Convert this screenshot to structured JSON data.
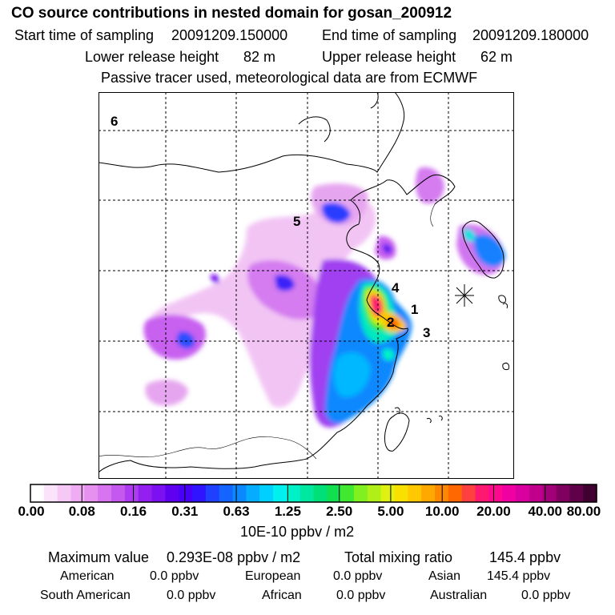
{
  "header": {
    "title": "CO  source contributions in nested domain for gosan_200912",
    "start_label": "Start time of sampling",
    "start_value": "20091209.150000",
    "end_label": "End time of sampling",
    "end_value": "20091209.180000",
    "lower_label": "Lower release height",
    "lower_value": "82 m",
    "upper_label": "Upper release height",
    "upper_value": "62 m",
    "note": "Passive tracer used, meteorological data are from ECMWF"
  },
  "map": {
    "region_labels": [
      "1",
      "2",
      "3",
      "4",
      "5",
      "6"
    ],
    "receptor_marker": "asterisk"
  },
  "colorbar": {
    "tick_labels": [
      "0.00",
      "0.08",
      "0.16",
      "0.31",
      "0.63",
      "1.25",
      "2.50",
      "5.00",
      "10.00",
      "20.00",
      "40.00",
      "80.00"
    ],
    "colors": [
      "#ffffff",
      "#fbe4fb",
      "#f5c8f5",
      "#efacf2",
      "#e690f0",
      "#d874ef",
      "#c558ef",
      "#ad3cf0",
      "#9420f0",
      "#7c10f0",
      "#6000f0",
      "#4800f8",
      "#3014ff",
      "#2040ff",
      "#1464ff",
      "#0c88ff",
      "#06acff",
      "#00d0ff",
      "#00f0f0",
      "#00f0c8",
      "#00e8a0",
      "#00e078",
      "#10e050",
      "#40e830",
      "#80f020",
      "#b0f018",
      "#e0f010",
      "#f8e000",
      "#ffc800",
      "#ffa800",
      "#ff8800",
      "#ff6800",
      "#ff4040",
      "#ff1870",
      "#ff0890",
      "#f000a0",
      "#d800a0",
      "#c0008c",
      "#a00078",
      "#800060",
      "#600048",
      "#400030"
    ],
    "units": "10E-10 ppbv / m2"
  },
  "stats": {
    "max_label": "Maximum value",
    "max_value": "0.293E-08 ppbv / m2",
    "total_label": "Total mixing ratio",
    "total_value": "145.4 ppbv",
    "regions": [
      {
        "name": "American",
        "value": "0.0 ppbv"
      },
      {
        "name": "European",
        "value": "0.0 ppbv"
      },
      {
        "name": "Asian",
        "value": "145.4 ppbv"
      },
      {
        "name": "South American",
        "value": "0.0 ppbv"
      },
      {
        "name": "African",
        "value": "0.0 ppbv"
      },
      {
        "name": "Australian",
        "value": "0.0 ppbv"
      }
    ]
  }
}
